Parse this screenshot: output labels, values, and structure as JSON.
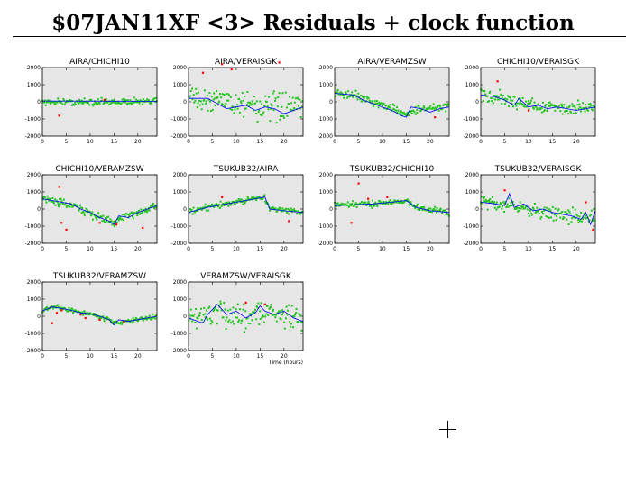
{
  "header": {
    "title": "$07JAN11XF <3> Residuals + clock function"
  },
  "chart_data": [
    {
      "type": "scatter",
      "title": "AIRA/CHICHI10",
      "xlim": [
        0,
        24
      ],
      "ylim": [
        -2000,
        2000
      ],
      "xticks": [
        0,
        5,
        10,
        15,
        20
      ],
      "yticks": [
        2000,
        1000,
        0,
        -1000,
        -2000
      ],
      "clock": [
        [
          0,
          50
        ],
        [
          24,
          30
        ]
      ],
      "pattern": [
        [
          0,
          0
        ],
        [
          24,
          0
        ]
      ],
      "noise": 160,
      "outliers": [
        [
          3.5,
          -800
        ],
        [
          13,
          120
        ]
      ],
      "xlabel": ""
    },
    {
      "type": "scatter",
      "title": "AIRA/VERAISGK",
      "xlim": [
        0,
        24
      ],
      "ylim": [
        -2000,
        2000
      ],
      "xticks": [
        0,
        5,
        10,
        15,
        20
      ],
      "yticks": [
        2000,
        1000,
        0,
        -1000,
        -2000
      ],
      "clock": [
        [
          0,
          200
        ],
        [
          4,
          200
        ],
        [
          8,
          -400
        ],
        [
          10,
          -300
        ],
        [
          12,
          -200
        ],
        [
          14,
          -500
        ],
        [
          16,
          -300
        ],
        [
          18,
          -400
        ],
        [
          20,
          -700
        ],
        [
          24,
          -300
        ]
      ],
      "pattern": [
        [
          0,
          300
        ],
        [
          6,
          200
        ],
        [
          12,
          -100
        ],
        [
          18,
          -400
        ],
        [
          24,
          -300
        ]
      ],
      "noise": 650,
      "outliers": [
        [
          3,
          1700
        ],
        [
          7,
          2200
        ],
        [
          9,
          1900
        ],
        [
          19,
          2300
        ]
      ],
      "xlabel": ""
    },
    {
      "type": "scatter",
      "title": "AIRA/VERAMZSW",
      "xlim": [
        0,
        24
      ],
      "ylim": [
        -2000,
        2000
      ],
      "xticks": [
        0,
        5,
        10,
        15,
        20
      ],
      "yticks": [
        2000,
        1000,
        0,
        -1000,
        -2000
      ],
      "clock": [
        [
          0,
          500
        ],
        [
          4,
          400
        ],
        [
          6,
          100
        ],
        [
          8,
          -100
        ],
        [
          10,
          -300
        ],
        [
          12,
          -500
        ],
        [
          14,
          -800
        ],
        [
          15,
          -900
        ],
        [
          16,
          -300
        ],
        [
          18,
          -400
        ],
        [
          20,
          -600
        ],
        [
          22,
          -400
        ],
        [
          24,
          -300
        ]
      ],
      "pattern": [
        [
          0,
          500
        ],
        [
          4,
          400
        ],
        [
          8,
          0
        ],
        [
          12,
          -400
        ],
        [
          15,
          -700
        ],
        [
          18,
          -400
        ],
        [
          24,
          -300
        ]
      ],
      "noise": 200,
      "outliers": [
        [
          21,
          -900
        ]
      ],
      "xlabel": ""
    },
    {
      "type": "scatter",
      "title": "CHICHI10/VERAISGK",
      "xlim": [
        0,
        24
      ],
      "ylim": [
        -2000,
        2000
      ],
      "xticks": [
        0,
        5,
        10,
        15,
        20
      ],
      "yticks": [
        2000,
        1000,
        0,
        -1000,
        -2000
      ],
      "clock": [
        [
          0,
          400
        ],
        [
          3,
          300
        ],
        [
          5,
          100
        ],
        [
          7,
          -200
        ],
        [
          8,
          200
        ],
        [
          10,
          -300
        ],
        [
          12,
          -200
        ],
        [
          14,
          -400
        ],
        [
          16,
          -300
        ],
        [
          18,
          -400
        ],
        [
          20,
          -500
        ],
        [
          22,
          -400
        ],
        [
          24,
          -300
        ]
      ],
      "pattern": [
        [
          0,
          400
        ],
        [
          6,
          100
        ],
        [
          12,
          -300
        ],
        [
          18,
          -400
        ],
        [
          24,
          -300
        ]
      ],
      "noise": 300,
      "outliers": [
        [
          3.5,
          1200
        ],
        [
          10,
          -500
        ]
      ],
      "xlabel": ""
    },
    {
      "type": "scatter",
      "title": "CHICHI10/VERAMZSW",
      "xlim": [
        0,
        24
      ],
      "ylim": [
        -2000,
        2000
      ],
      "xticks": [
        0,
        5,
        10,
        15,
        20
      ],
      "yticks": [
        2000,
        1000,
        0,
        -1000,
        -2000
      ],
      "clock": [
        [
          0,
          600
        ],
        [
          4,
          400
        ],
        [
          6,
          300
        ],
        [
          8,
          0
        ],
        [
          10,
          -200
        ],
        [
          12,
          -500
        ],
        [
          14,
          -700
        ],
        [
          15,
          -900
        ],
        [
          16,
          -400
        ],
        [
          18,
          -500
        ],
        [
          20,
          -200
        ],
        [
          24,
          200
        ]
      ],
      "pattern": [
        [
          0,
          600
        ],
        [
          4,
          400
        ],
        [
          8,
          0
        ],
        [
          12,
          -500
        ],
        [
          15,
          -800
        ],
        [
          18,
          -400
        ],
        [
          24,
          200
        ]
      ],
      "noise": 200,
      "outliers": [
        [
          3.5,
          1300
        ],
        [
          5,
          -1200
        ],
        [
          4,
          -800
        ],
        [
          12,
          -800
        ],
        [
          15.5,
          -900
        ],
        [
          21,
          -1100
        ]
      ],
      "xlabel": ""
    },
    {
      "type": "scatter",
      "title": "TSUKUB32/AIRA",
      "xlim": [
        0,
        24
      ],
      "ylim": [
        -2000,
        2000
      ],
      "xticks": [
        0,
        5,
        10,
        15,
        20
      ],
      "yticks": [
        2000,
        1000,
        0,
        -1000,
        -2000
      ],
      "clock": [
        [
          0,
          -200
        ],
        [
          4,
          100
        ],
        [
          6,
          200
        ],
        [
          8,
          300
        ],
        [
          10,
          400
        ],
        [
          12,
          500
        ],
        [
          14,
          600
        ],
        [
          16,
          700
        ],
        [
          17,
          0
        ],
        [
          20,
          -100
        ],
        [
          24,
          -200
        ]
      ],
      "pattern": [
        [
          0,
          -200
        ],
        [
          6,
          200
        ],
        [
          12,
          500
        ],
        [
          16,
          700
        ],
        [
          17,
          0
        ],
        [
          24,
          -200
        ]
      ],
      "noise": 150,
      "outliers": [
        [
          7,
          700
        ],
        [
          21,
          -700
        ]
      ],
      "xlabel": ""
    },
    {
      "type": "scatter",
      "title": "TSUKUB32/CHICHI10",
      "xlim": [
        0,
        24
      ],
      "ylim": [
        -2000,
        2000
      ],
      "xticks": [
        0,
        5,
        10,
        15,
        20
      ],
      "yticks": [
        2000,
        1000,
        0,
        -1000,
        -2000
      ],
      "clock": [
        [
          0,
          200
        ],
        [
          4,
          250
        ],
        [
          8,
          300
        ],
        [
          12,
          400
        ],
        [
          15,
          500
        ],
        [
          17,
          100
        ],
        [
          20,
          -100
        ],
        [
          24,
          -200
        ]
      ],
      "pattern": [
        [
          0,
          200
        ],
        [
          8,
          300
        ],
        [
          15,
          500
        ],
        [
          17,
          100
        ],
        [
          24,
          -200
        ]
      ],
      "noise": 150,
      "outliers": [
        [
          3.5,
          -800
        ],
        [
          5,
          1500
        ],
        [
          7,
          600
        ],
        [
          11,
          700
        ]
      ],
      "xlabel": ""
    },
    {
      "type": "scatter",
      "title": "TSUKUB32/VERAISGK",
      "xlim": [
        0,
        24
      ],
      "ylim": [
        -2000,
        2000
      ],
      "xticks": [
        0,
        5,
        10,
        15,
        20
      ],
      "yticks": [
        2000,
        1000,
        0,
        -1000,
        -2000
      ],
      "clock": [
        [
          0,
          400
        ],
        [
          3,
          300
        ],
        [
          5,
          200
        ],
        [
          6,
          900
        ],
        [
          7,
          100
        ],
        [
          9,
          300
        ],
        [
          11,
          -100
        ],
        [
          13,
          0
        ],
        [
          15,
          -200
        ],
        [
          17,
          -300
        ],
        [
          19,
          -400
        ],
        [
          21,
          -600
        ],
        [
          22,
          -200
        ],
        [
          23,
          -900
        ],
        [
          24,
          -100
        ]
      ],
      "pattern": [
        [
          0,
          400
        ],
        [
          6,
          200
        ],
        [
          12,
          -100
        ],
        [
          18,
          -400
        ],
        [
          24,
          -500
        ]
      ],
      "noise": 330,
      "outliers": [
        [
          5,
          1100
        ],
        [
          22,
          400
        ],
        [
          23.5,
          -1200
        ]
      ],
      "xlabel": ""
    },
    {
      "type": "scatter",
      "title": "TSUKUB32/VERAMZSW",
      "xlim": [
        0,
        24
      ],
      "ylim": [
        -2000,
        2000
      ],
      "xticks": [
        0,
        5,
        10,
        15,
        20
      ],
      "yticks": [
        2000,
        1000,
        0,
        -1000,
        -2000
      ],
      "clock": [
        [
          0,
          300
        ],
        [
          2,
          550
        ],
        [
          4,
          450
        ],
        [
          6,
          350
        ],
        [
          8,
          200
        ],
        [
          10,
          150
        ],
        [
          12,
          0
        ],
        [
          14,
          -200
        ],
        [
          15,
          -500
        ],
        [
          16,
          -200
        ],
        [
          18,
          -300
        ],
        [
          20,
          -200
        ],
        [
          22,
          -100
        ],
        [
          24,
          0
        ]
      ],
      "pattern": [
        [
          0,
          300
        ],
        [
          2,
          550
        ],
        [
          6,
          350
        ],
        [
          10,
          150
        ],
        [
          14,
          -200
        ],
        [
          15,
          -400
        ],
        [
          18,
          -300
        ],
        [
          24,
          0
        ]
      ],
      "noise": 110,
      "outliers": [
        [
          2,
          -400
        ],
        [
          3,
          200
        ],
        [
          4,
          350
        ],
        [
          8,
          100
        ],
        [
          9,
          -100
        ],
        [
          12,
          -200
        ],
        [
          17,
          -300
        ]
      ],
      "xlabel": ""
    },
    {
      "type": "scatter",
      "title": "VERAMZSW/VERAISGK",
      "xlim": [
        0,
        24
      ],
      "ylim": [
        -2000,
        2000
      ],
      "xticks": [
        0,
        5,
        10,
        15,
        20
      ],
      "yticks": [
        2000,
        1000,
        0,
        -1000,
        -2000
      ],
      "clock": [
        [
          0,
          -100
        ],
        [
          3,
          -400
        ],
        [
          4,
          100
        ],
        [
          6,
          700
        ],
        [
          8,
          100
        ],
        [
          10,
          300
        ],
        [
          12,
          -100
        ],
        [
          14,
          200
        ],
        [
          15,
          600
        ],
        [
          16,
          300
        ],
        [
          18,
          100
        ],
        [
          20,
          300
        ],
        [
          22,
          -100
        ],
        [
          24,
          -300
        ]
      ],
      "pattern": [
        [
          0,
          -100
        ],
        [
          6,
          200
        ],
        [
          12,
          0
        ],
        [
          16,
          300
        ],
        [
          24,
          -200
        ]
      ],
      "noise": 600,
      "outliers": [
        [
          12,
          800
        ],
        [
          16,
          700
        ]
      ],
      "xlabel": "Time (hours)"
    }
  ],
  "colors": {
    "panel_bg": "#e6e6e6",
    "points": "#22c41e",
    "clock_line": "#0000ff",
    "outliers": "#ff0000",
    "axes": "#000000"
  }
}
